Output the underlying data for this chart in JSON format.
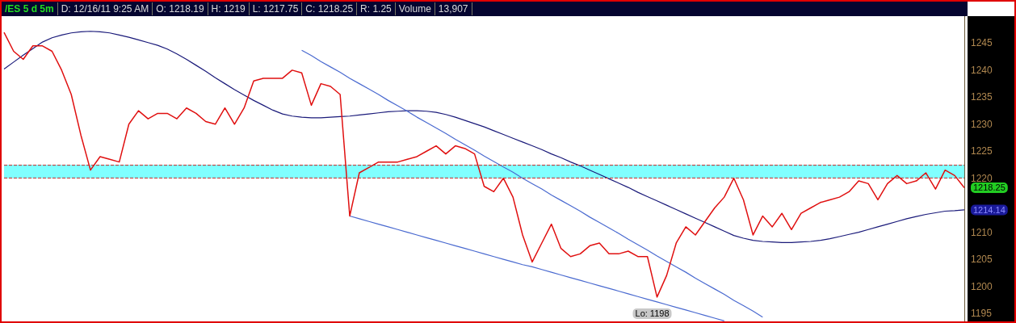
{
  "chart_data": {
    "type": "line",
    "annotations": [
      "/ES 5 d 5m",
      "D: 12/16/11 9:25 AM",
      "O: 1218.19",
      "H: 1219",
      "L: 1217.75",
      "C: 1218.25",
      "R: 1.25",
      "Volume",
      "13,907"
    ],
    "categories": [
      null,
      null,
      null,
      null,
      null,
      null,
      null,
      null,
      null,
      null,
      null,
      null,
      null,
      null,
      null,
      null,
      null,
      null,
      null,
      null,
      null,
      null,
      null,
      null,
      null,
      null,
      null,
      null,
      null,
      null,
      null,
      null,
      null,
      null,
      null,
      null,
      null,
      null,
      null,
      null,
      null,
      null,
      null,
      null,
      null,
      null,
      null,
      null,
      null,
      null,
      null,
      null,
      null,
      null,
      null,
      null,
      null,
      null,
      null,
      null,
      null,
      null,
      null,
      null,
      null,
      null,
      null,
      null,
      null,
      null,
      null,
      null,
      null,
      null,
      null,
      null,
      null,
      null,
      null,
      null,
      null,
      null,
      null,
      null,
      null,
      null,
      null,
      null,
      null,
      null,
      null,
      null,
      null,
      null,
      null,
      null,
      null,
      null,
      null,
      null,
      null
    ],
    "ylim": [
      1193.5,
      1250
    ],
    "yticks": [
      1195,
      1200,
      1205,
      1210,
      1220,
      1225,
      1230,
      1235,
      1240,
      1245
    ],
    "tick_labels": "y",
    "marker": "none",
    "bands": [
      {
        "axis": "y",
        "from": 1220,
        "to": 1222.5,
        "color": "#80ffff"
      }
    ],
    "ref_lines": [
      {
        "axis": "y",
        "value": 1222.5,
        "color": "#c03030",
        "line_style": "dashed"
      },
      {
        "axis": "y",
        "value": 1220,
        "color": "#c03030",
        "line_style": "dashed"
      }
    ],
    "series": [
      {
        "color": "#e01010",
        "values": [
          1247,
          1243.5,
          1242,
          1244.5,
          1244.5,
          1243.5,
          1240,
          1235.5,
          1228,
          1221.5,
          1224,
          1223.5,
          1223,
          1230,
          1232.5,
          1231,
          1232,
          1232,
          1231,
          1233,
          1232,
          1230.5,
          1230,
          1233,
          1230,
          1233,
          1238,
          1238.5,
          1238.5,
          1238.5,
          1240,
          1239.5,
          1233.5,
          1237.5,
          1237,
          1235.5,
          1213,
          1221,
          1222,
          1223,
          1223,
          1223,
          1223.5,
          1224,
          1225,
          1226,
          1224.5,
          1226,
          1225.5,
          1224.5,
          1218.5,
          1217.5,
          1220,
          1216.5,
          1209.5,
          1204.5,
          1208,
          1211.5,
          1207,
          1205.5,
          1206,
          1207.5,
          1208,
          1206,
          1206,
          1206.5,
          1205.5,
          1205.5,
          1198,
          1202,
          1208,
          1211,
          1209.5,
          1212,
          1214.5,
          1216.5,
          1220,
          1216,
          1209.5,
          1213,
          1211,
          1213.5,
          1210.5,
          1213.5,
          1214.5,
          1215.5,
          1216,
          1216.5,
          1217.5,
          1219.5,
          1219,
          1216,
          1219,
          1220.5,
          1219,
          1219.5,
          1221,
          1218,
          1221.5,
          1220.5,
          1218.25
        ],
        "value_labels": [
          null,
          null,
          null,
          null,
          null,
          null,
          null,
          null,
          null,
          null,
          null,
          null,
          null,
          null,
          null,
          null,
          null,
          null,
          null,
          null,
          null,
          null,
          null,
          null,
          null,
          null,
          null,
          null,
          null,
          null,
          null,
          null,
          null,
          null,
          null,
          null,
          null,
          null,
          null,
          null,
          null,
          null,
          null,
          null,
          null,
          null,
          null,
          null,
          null,
          null,
          null,
          null,
          null,
          null,
          null,
          null,
          null,
          null,
          null,
          null,
          null,
          null,
          null,
          null,
          null,
          null,
          null,
          null,
          "Lo: 1198",
          null,
          null,
          null,
          null,
          null,
          null,
          null,
          null,
          null,
          null,
          null,
          null,
          null,
          null,
          null,
          null,
          null,
          null,
          null,
          null,
          null,
          null,
          null,
          null,
          null,
          null,
          null,
          null,
          null,
          null,
          null,
          "1218.25"
        ]
      },
      {
        "color": "#1a1a7a",
        "values": [
          1240.2,
          1241.5,
          1242.8,
          1244,
          1245.2,
          1246,
          1246.5,
          1246.9,
          1247.1,
          1247.2,
          1247.1,
          1246.9,
          1246.5,
          1246.1,
          1245.6,
          1245.1,
          1244.6,
          1243.9,
          1243,
          1242,
          1240.9,
          1239.8,
          1238.6,
          1237.5,
          1236.4,
          1235.4,
          1234.4,
          1233.5,
          1232.6,
          1231.9,
          1231.5,
          1231.3,
          1231.2,
          1231.2,
          1231.3,
          1231.4,
          1231.5,
          1231.7,
          1231.9,
          1232.1,
          1232.3,
          1232.4,
          1232.5,
          1232.5,
          1232.4,
          1232.2,
          1231.8,
          1231.3,
          1230.7,
          1230.1,
          1229.5,
          1228.8,
          1228.1,
          1227.4,
          1226.7,
          1226,
          1225.3,
          1224.5,
          1223.8,
          1223,
          1222.3,
          1221.5,
          1220.7,
          1219.9,
          1219.1,
          1218.3,
          1217.4,
          1216.6,
          1215.8,
          1215,
          1214.2,
          1213.4,
          1212.6,
          1211.8,
          1211,
          1210.2,
          1209.4,
          1208.9,
          1208.5,
          1208.3,
          1208.2,
          1208.1,
          1208.1,
          1208.2,
          1208.3,
          1208.5,
          1208.8,
          1209.2,
          1209.6,
          1210,
          1210.5,
          1211,
          1211.5,
          1212,
          1212.5,
          1212.9,
          1213.3,
          1213.6,
          1213.9,
          1214,
          1214.14
        ],
        "value_labels": [
          null,
          null,
          null,
          null,
          null,
          null,
          null,
          null,
          null,
          null,
          null,
          null,
          null,
          null,
          null,
          null,
          null,
          null,
          null,
          null,
          null,
          null,
          null,
          null,
          null,
          null,
          null,
          null,
          null,
          null,
          null,
          null,
          null,
          null,
          null,
          null,
          null,
          null,
          null,
          null,
          null,
          null,
          null,
          null,
          null,
          null,
          null,
          null,
          null,
          null,
          null,
          null,
          null,
          null,
          null,
          null,
          null,
          null,
          null,
          null,
          null,
          null,
          null,
          null,
          null,
          null,
          null,
          null,
          null,
          null,
          null,
          null,
          null,
          null,
          null,
          null,
          null,
          null,
          null,
          null,
          null,
          null,
          null,
          null,
          null,
          null,
          null,
          null,
          null,
          null,
          null,
          null,
          null,
          null,
          null,
          null,
          null,
          null,
          null,
          null,
          "1214.14"
        ]
      },
      {
        "color": "#4a6ad0",
        "values": [
          null,
          null,
          null,
          null,
          null,
          null,
          null,
          null,
          null,
          null,
          null,
          null,
          null,
          null,
          null,
          null,
          null,
          null,
          null,
          null,
          null,
          null,
          null,
          null,
          null,
          null,
          null,
          null,
          null,
          null,
          null,
          1243.7,
          1242.7,
          1241.6,
          1240.6,
          1239.6,
          1238.5,
          1237.5,
          1236.5,
          1235.5,
          1234.4,
          1233.4,
          1232.4,
          1231.3,
          1230.3,
          1229.3,
          1228.3,
          1227.2,
          1226.2,
          1225.2,
          1224.1,
          1223.1,
          1222.1,
          1221.1,
          1220,
          1219,
          1218,
          1216.9,
          1215.9,
          1214.9,
          1213.9,
          1212.8,
          1211.8,
          1210.8,
          1209.8,
          1208.7,
          1207.7,
          1206.7,
          1205.6,
          1204.6,
          1203.6,
          1202.6,
          1201.5,
          1200.5,
          1199.5,
          1198.5,
          1197.4,
          1196.4,
          1195.4,
          1194.3,
          null,
          null,
          null,
          null,
          null,
          null,
          null,
          null,
          null,
          null,
          null,
          null,
          null,
          null,
          null,
          null,
          null,
          null,
          null,
          null,
          null
        ]
      },
      {
        "color": "#4a6ad0",
        "values": [
          null,
          null,
          null,
          null,
          null,
          null,
          null,
          null,
          null,
          null,
          null,
          null,
          null,
          null,
          null,
          null,
          null,
          null,
          null,
          null,
          null,
          null,
          null,
          null,
          null,
          null,
          null,
          null,
          null,
          null,
          null,
          null,
          null,
          null,
          null,
          null,
          1213,
          1212.5,
          1212,
          1211.5,
          1211,
          1210.5,
          1210,
          1209.5,
          1209,
          1208.5,
          1208,
          1207.5,
          1207,
          1206.5,
          1206,
          1205.5,
          1205,
          1204.5,
          1204,
          1203.6,
          1203.1,
          1202.6,
          1202.1,
          1201.6,
          1201.1,
          1200.6,
          1200.1,
          1199.6,
          1199.1,
          1198.6,
          1198.1,
          1197.6,
          1197.1,
          1196.6,
          1196.1,
          1195.6,
          1195.1,
          1194.6,
          1194.1,
          1193.6,
          null,
          null,
          null,
          null,
          null,
          null,
          null,
          null,
          null,
          null,
          null,
          null,
          null,
          null,
          null,
          null,
          null,
          null,
          null,
          null,
          null,
          null,
          null,
          null,
          null
        ]
      }
    ]
  }
}
